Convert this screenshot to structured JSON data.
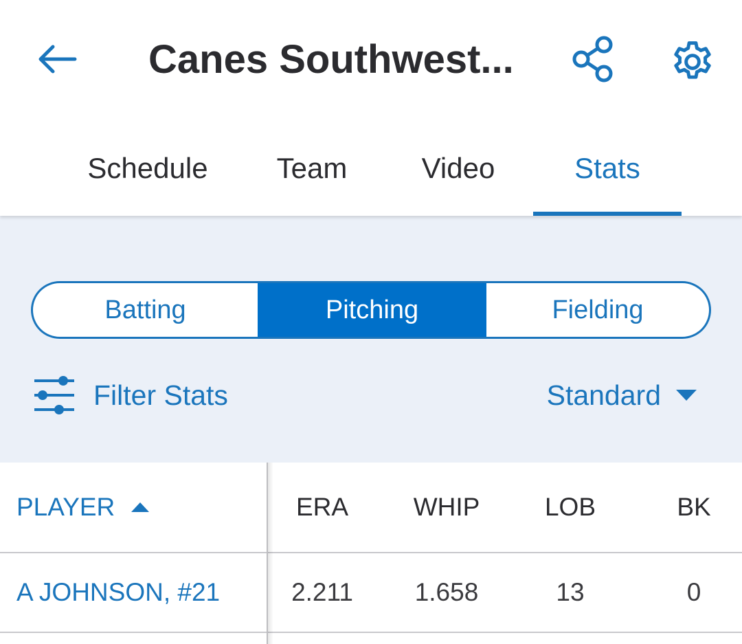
{
  "header": {
    "title": "Canes Southwest...",
    "back_icon": "arrow-left-icon",
    "share_icon": "share-icon",
    "settings_icon": "gear-icon"
  },
  "tabs": [
    {
      "label": "Schedule",
      "active": false
    },
    {
      "label": "Team",
      "active": false
    },
    {
      "label": "Video",
      "active": false
    },
    {
      "label": "Stats",
      "active": true
    }
  ],
  "segments": [
    {
      "label": "Batting",
      "active": false
    },
    {
      "label": "Pitching",
      "active": true
    },
    {
      "label": "Fielding",
      "active": false
    }
  ],
  "filter": {
    "label": "Filter Stats",
    "icon": "sliders-icon"
  },
  "view_select": {
    "label": "Standard",
    "icon": "caret-down-icon"
  },
  "table": {
    "columns": [
      "PLAYER",
      "ERA",
      "WHIP",
      "LOB",
      "BK"
    ],
    "sort_icon": "caret-up-icon",
    "rows": [
      [
        "A JOHNSON, #21",
        "2.211",
        "1.658",
        "13",
        "0"
      ]
    ]
  },
  "colors": {
    "accent": "#1a75bc",
    "active_segment": "#0070c9",
    "panel_background": "#ebf0f8",
    "text": "#2b2b2f"
  }
}
